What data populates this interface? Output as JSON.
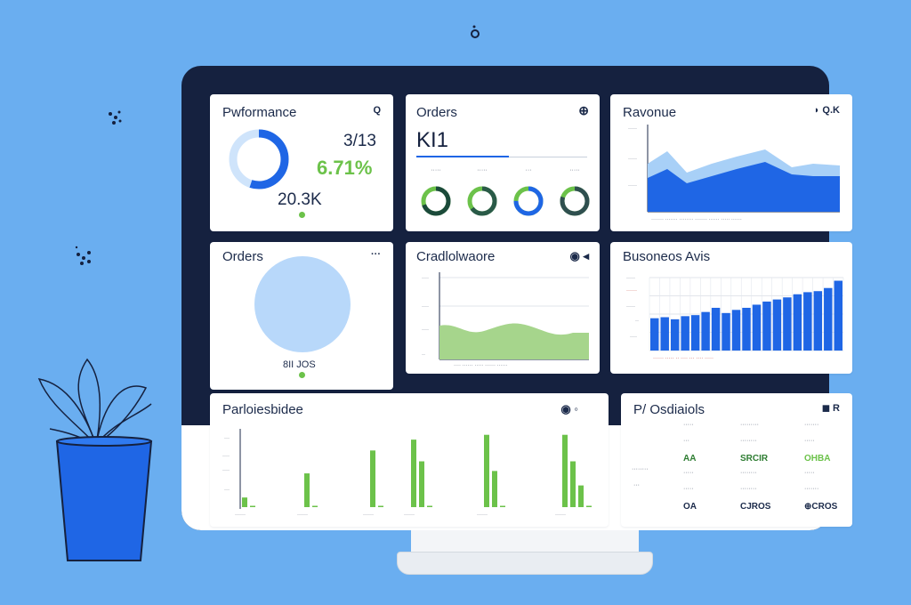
{
  "colors": {
    "background": "#6aaef0",
    "blue": "#1f66e5",
    "light_blue": "#a8d0f7",
    "green": "#6cc24a",
    "navy": "#15213f"
  },
  "performance": {
    "title": "Pwformance",
    "icon_text": "Q",
    "value_top": "3/13",
    "value_pct": "6.71%",
    "value_bottom": "20.3K",
    "donut_fraction": 0.55
  },
  "orders_kpi": {
    "title": "Orders",
    "icon_text": "⊕",
    "value": "KI1",
    "donuts": [
      {
        "label": "·····",
        "fraction": 0.7,
        "color": "#1b4a3a"
      },
      {
        "label": "·····",
        "fraction": 0.65,
        "color": "#2a5a48"
      },
      {
        "label": "···",
        "fraction": 0.75,
        "color": "#1f66e5"
      },
      {
        "label": "·····",
        "fraction": 0.8,
        "color": "#2f4f4f"
      }
    ]
  },
  "revenue": {
    "title": "Ravonue",
    "icon_text": "◗ Q.K"
  },
  "orders_pie": {
    "title": "Orders",
    "icon_text": "···",
    "caption": "8II JOS"
  },
  "cash_chart": {
    "title": "Cradlolwaore",
    "icon_text": "◉ ◂"
  },
  "business_ads": {
    "title": "Busoneos Avis",
    "chart_data": {
      "type": "bar",
      "values": [
        31,
        32,
        30,
        33,
        34,
        37,
        41,
        36,
        39,
        41,
        44,
        47,
        49,
        51,
        54,
        56,
        57,
        60,
        67
      ]
    }
  },
  "performance_bars": {
    "title": "Parloiesbidee",
    "icon_text": "◉ ◦",
    "chart_data": {
      "type": "bar",
      "groups": [
        [
          8,
          0
        ],
        [
          28,
          0
        ],
        [
          47,
          0
        ],
        [
          56,
          38,
          0
        ],
        [
          60,
          30,
          0
        ],
        [
          60,
          38,
          18,
          0
        ]
      ]
    }
  },
  "products": {
    "title": "P/ Osdiaiols",
    "icon_text": "◼ R",
    "rows": [
      [
        "·····",
        "·········",
        "·······"
      ],
      [
        "···",
        "········",
        "·····"
      ],
      [
        "AA",
        "SRCIR",
        "OHBA"
      ],
      [
        "·····",
        "········",
        "·····"
      ],
      [
        "·····",
        "········",
        "·······"
      ],
      [
        "OA",
        "CJROS",
        "⊕CROS"
      ]
    ]
  }
}
